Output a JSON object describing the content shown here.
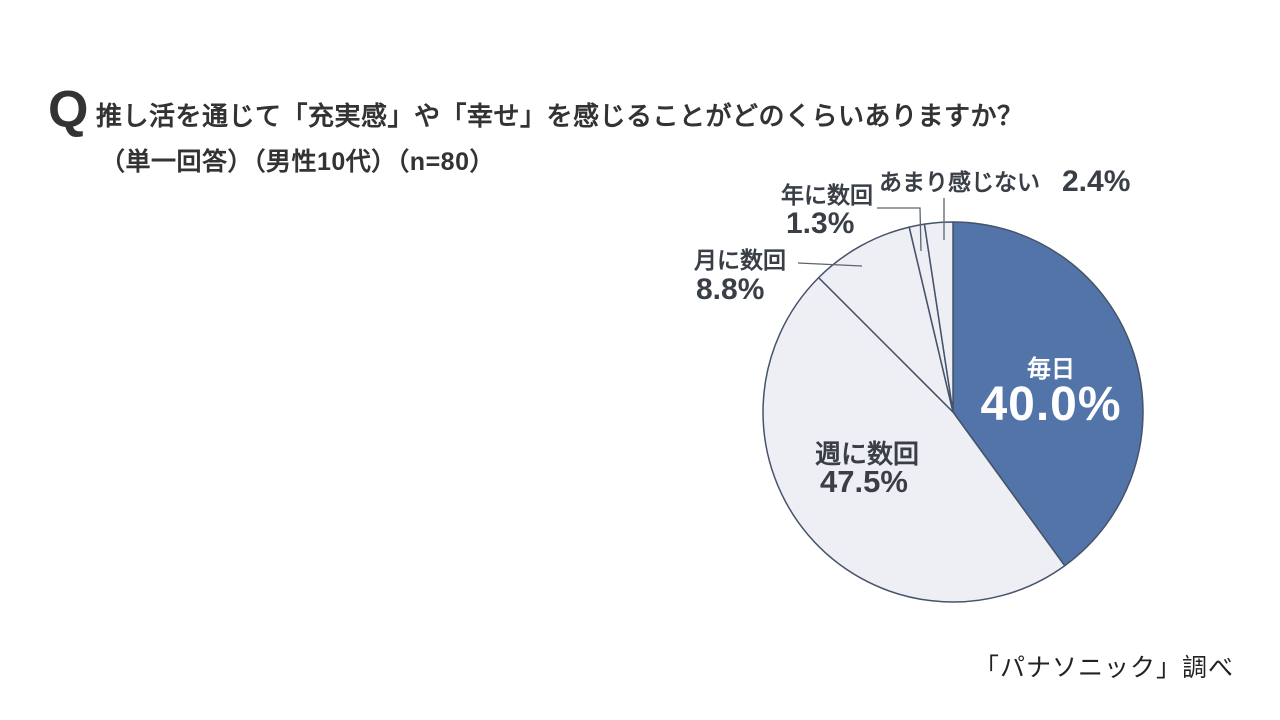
{
  "header": {
    "q": "Q",
    "title": "推し活を通じて「充実感」や「幸せ」を感じることがどのくらいありますか？",
    "subtitle": "（単一回答）（男性10代）（n=80）"
  },
  "footer": {
    "source": "「パナソニック」調べ"
  },
  "style": {
    "accent_blue": "#5274A8",
    "light_slice": "#EDEFF4",
    "slice_stroke": "#46536B",
    "leader_stroke": "#5A6470",
    "label_dark": "#3A3F47",
    "label_light": "#FFFFFF"
  },
  "chart_data": {
    "type": "pie",
    "title": "推し活を通じて「充実感」や「幸せ」を感じることがどのくらいありますか？",
    "subtitle": "（単一回答）（男性10代）（n=80）",
    "categories": [
      "毎日",
      "週に数回",
      "月に数回",
      "年に数回",
      "あまり感じない"
    ],
    "values": [
      40.0,
      47.5,
      8.8,
      1.3,
      2.4
    ],
    "display_values": [
      "40.0%",
      "47.5%",
      "8.8%",
      "1.3%",
      "2.4%"
    ],
    "unit": "%",
    "colors": [
      "#5274A8",
      "#EDEFF4",
      "#EDEFF4",
      "#EDEFF4",
      "#EDEFF4"
    ],
    "start_angle_deg": 0,
    "direction": "clockwise",
    "legend": "none",
    "grid": false,
    "source": "「パナソニック」調べ"
  }
}
